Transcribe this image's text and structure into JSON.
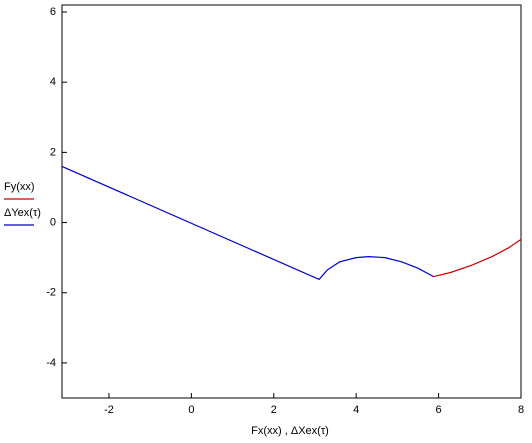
{
  "chart_data": {
    "type": "line",
    "x_label": "Fx(xx) , ΔXex(τ)",
    "series": [
      {
        "name": "Fy(xx)",
        "color": "#cc0000",
        "x": [
          5.88,
          6.3,
          6.8,
          7.3,
          7.7,
          8
        ],
        "values": [
          -1.54,
          -1.42,
          -1.22,
          -0.97,
          -0.72,
          -0.48
        ]
      },
      {
        "name": "ΔYex(τ)",
        "color": "#0000cc",
        "x": [
          -3.14,
          3.1,
          3.3,
          3.6,
          4.0,
          4.3,
          4.7,
          5.1,
          5.5,
          5.88
        ],
        "values": [
          1.6,
          -1.62,
          -1.35,
          -1.12,
          -1.0,
          -0.97,
          -1.0,
          -1.12,
          -1.3,
          -1.54
        ]
      }
    ],
    "xlim": [
      -3.14,
      8
    ],
    "ylim": [
      -5,
      6.2
    ],
    "xticks": [
      -2,
      0,
      2,
      4,
      6,
      8
    ],
    "yticks": [
      -4,
      -2,
      0,
      2,
      4,
      6
    ]
  }
}
